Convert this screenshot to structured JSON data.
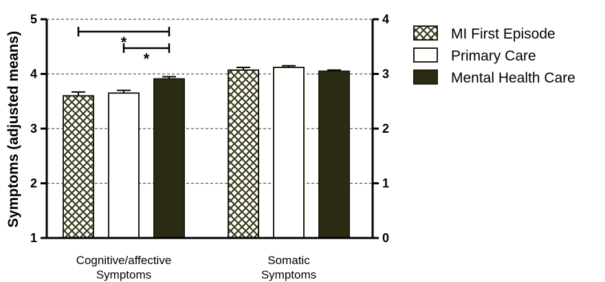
{
  "chart_data": {
    "type": "bar",
    "ylabel": "Symptoms (adjusted means)",
    "ylim": [
      1,
      5
    ],
    "yticks": [
      "1",
      "2",
      "3",
      "4",
      "5"
    ],
    "y2lim": [
      0,
      4
    ],
    "y2ticks": [
      "0",
      "1",
      "2",
      "3",
      "4"
    ],
    "grid": "horizontal dashed",
    "legend_position": "right",
    "categories": [
      "Cognitive/affective Symptoms",
      "Somatic Symptoms"
    ],
    "category_lines": [
      [
        "Cognitive/affective",
        "Symptoms"
      ],
      [
        "Somatic",
        "Symptoms"
      ]
    ],
    "series": [
      {
        "name": "MI First Episode",
        "values": [
          3.6,
          4.07
        ],
        "errors": [
          0.07,
          0.05
        ],
        "fill": "crosshatch",
        "color": "#3a3a1c"
      },
      {
        "name": "Primary Care",
        "values": [
          3.65,
          4.12
        ],
        "errors": [
          0.05,
          0.03
        ],
        "fill": "white",
        "color": "#ffffff"
      },
      {
        "name": "Mental Health Care",
        "values": [
          3.91,
          4.05
        ],
        "errors": [
          0.04,
          0.02
        ],
        "fill": "solid",
        "color": "#2b2b14"
      }
    ],
    "significance": [
      {
        "category": 0,
        "from_series": 0,
        "to_series": 2,
        "label": "*"
      },
      {
        "category": 0,
        "from_series": 1,
        "to_series": 2,
        "label": "*"
      }
    ]
  }
}
